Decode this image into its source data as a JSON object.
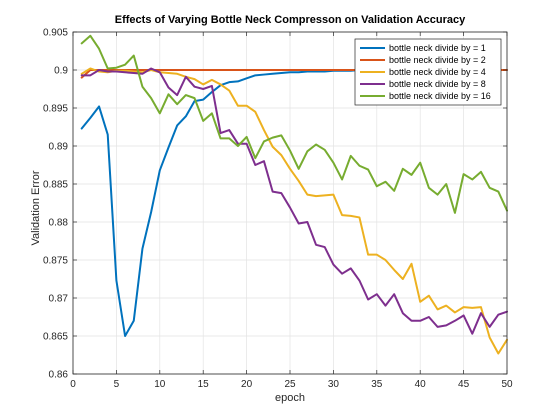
{
  "chart_data": {
    "type": "line",
    "title": "Effects of Varying Bottle Neck Compresson on Validation Accuracy",
    "xlabel": "epoch",
    "ylabel": "Validation Error",
    "xlim": [
      0,
      50
    ],
    "ylim": [
      0.86,
      0.905
    ],
    "xticks": [
      0,
      5,
      10,
      15,
      20,
      25,
      30,
      35,
      40,
      45,
      50
    ],
    "yticks": [
      0.86,
      0.865,
      0.87,
      0.875,
      0.88,
      0.885,
      0.89,
      0.895,
      0.9,
      0.905
    ],
    "grid": true,
    "legend_position": "top-right",
    "x": [
      1,
      2,
      3,
      4,
      5,
      6,
      7,
      8,
      9,
      10,
      11,
      12,
      13,
      14,
      15,
      16,
      17,
      18,
      19,
      20,
      21,
      22,
      23,
      24,
      25,
      26,
      27,
      28,
      29,
      30,
      31,
      32,
      33,
      34,
      35,
      36,
      37,
      38,
      39,
      40,
      41,
      42,
      43,
      44,
      45,
      46,
      47,
      48,
      49,
      50
    ],
    "series": [
      {
        "name": "bottle neck divide by = 1",
        "color": "#0072BD",
        "values": [
          0.8923,
          0.8937,
          0.8952,
          0.8915,
          0.8723,
          0.865,
          0.867,
          0.8765,
          0.8813,
          0.8868,
          0.8898,
          0.8927,
          0.8939,
          0.8959,
          0.8961,
          0.8971,
          0.898,
          0.8984,
          0.8985,
          0.8989,
          0.8993,
          0.8994,
          0.8995,
          0.8996,
          0.8997,
          0.8997,
          0.8998,
          0.8998,
          0.8998,
          0.8999,
          0.8999,
          0.8999,
          0.9,
          0.9,
          0.9,
          0.9,
          0.9,
          0.9,
          0.9,
          0.9,
          0.9,
          0.9,
          0.9,
          0.9,
          0.9,
          0.9,
          0.9,
          0.9,
          0.9,
          0.9
        ]
      },
      {
        "name": "bottle neck divide by = 2",
        "color": "#D95319",
        "values": [
          0.899,
          0.9,
          0.9,
          0.9,
          0.9,
          0.9,
          0.9,
          0.9,
          0.9,
          0.9,
          0.9,
          0.9,
          0.9,
          0.9,
          0.9,
          0.9,
          0.9,
          0.9,
          0.9,
          0.9,
          0.9,
          0.9,
          0.9,
          0.9,
          0.9,
          0.9,
          0.9,
          0.9,
          0.9,
          0.9,
          0.9,
          0.9,
          0.9,
          0.9,
          0.9,
          0.9,
          0.9,
          0.9,
          0.9,
          0.9,
          0.9,
          0.9,
          0.9,
          0.9,
          0.9,
          0.9,
          0.9,
          0.9,
          0.9,
          0.9
        ]
      },
      {
        "name": "bottle neck divide by = 4",
        "color": "#EDB120",
        "values": [
          0.8995,
          0.9002,
          0.8998,
          0.8997,
          0.8999,
          0.8999,
          0.8998,
          0.8997,
          0.9,
          0.8997,
          0.8996,
          0.8995,
          0.8991,
          0.8988,
          0.8981,
          0.8987,
          0.8981,
          0.8973,
          0.8953,
          0.8953,
          0.8945,
          0.8921,
          0.8899,
          0.8888,
          0.887,
          0.8854,
          0.8836,
          0.8834,
          0.8835,
          0.8836,
          0.8809,
          0.8808,
          0.8806,
          0.8757,
          0.8757,
          0.875,
          0.8737,
          0.8725,
          0.8745,
          0.8695,
          0.8703,
          0.8685,
          0.869,
          0.8681,
          0.8688,
          0.8687,
          0.8688,
          0.8648,
          0.8627,
          0.8645
        ]
      },
      {
        "name": "bottle neck divide by = 8",
        "color": "#7E2F8E",
        "values": [
          0.8993,
          0.8993,
          0.9,
          0.8998,
          0.8998,
          0.8997,
          0.8996,
          0.8995,
          0.9002,
          0.8997,
          0.8977,
          0.8967,
          0.8991,
          0.8978,
          0.8975,
          0.8979,
          0.8917,
          0.8921,
          0.8903,
          0.8903,
          0.8875,
          0.888,
          0.884,
          0.8838,
          0.8819,
          0.8798,
          0.88,
          0.877,
          0.8767,
          0.8744,
          0.8732,
          0.8739,
          0.8723,
          0.8698,
          0.8705,
          0.869,
          0.8705,
          0.868,
          0.867,
          0.867,
          0.8675,
          0.8662,
          0.8664,
          0.867,
          0.8677,
          0.8653,
          0.868,
          0.8662,
          0.8678,
          0.8682
        ]
      },
      {
        "name": "bottle neck divide by = 16",
        "color": "#77AC30",
        "values": [
          0.9035,
          0.9045,
          0.9028,
          0.9002,
          0.9003,
          0.9007,
          0.9019,
          0.8978,
          0.8963,
          0.8943,
          0.8968,
          0.8955,
          0.8967,
          0.8963,
          0.8933,
          0.8943,
          0.891,
          0.891,
          0.89,
          0.8912,
          0.8884,
          0.8906,
          0.8911,
          0.8914,
          0.8894,
          0.887,
          0.8893,
          0.8902,
          0.8895,
          0.8878,
          0.8856,
          0.8887,
          0.8874,
          0.8869,
          0.8847,
          0.8853,
          0.8841,
          0.887,
          0.8862,
          0.8878,
          0.8845,
          0.8836,
          0.885,
          0.8812,
          0.8863,
          0.8856,
          0.8866,
          0.8845,
          0.884,
          0.8815
        ]
      }
    ]
  }
}
